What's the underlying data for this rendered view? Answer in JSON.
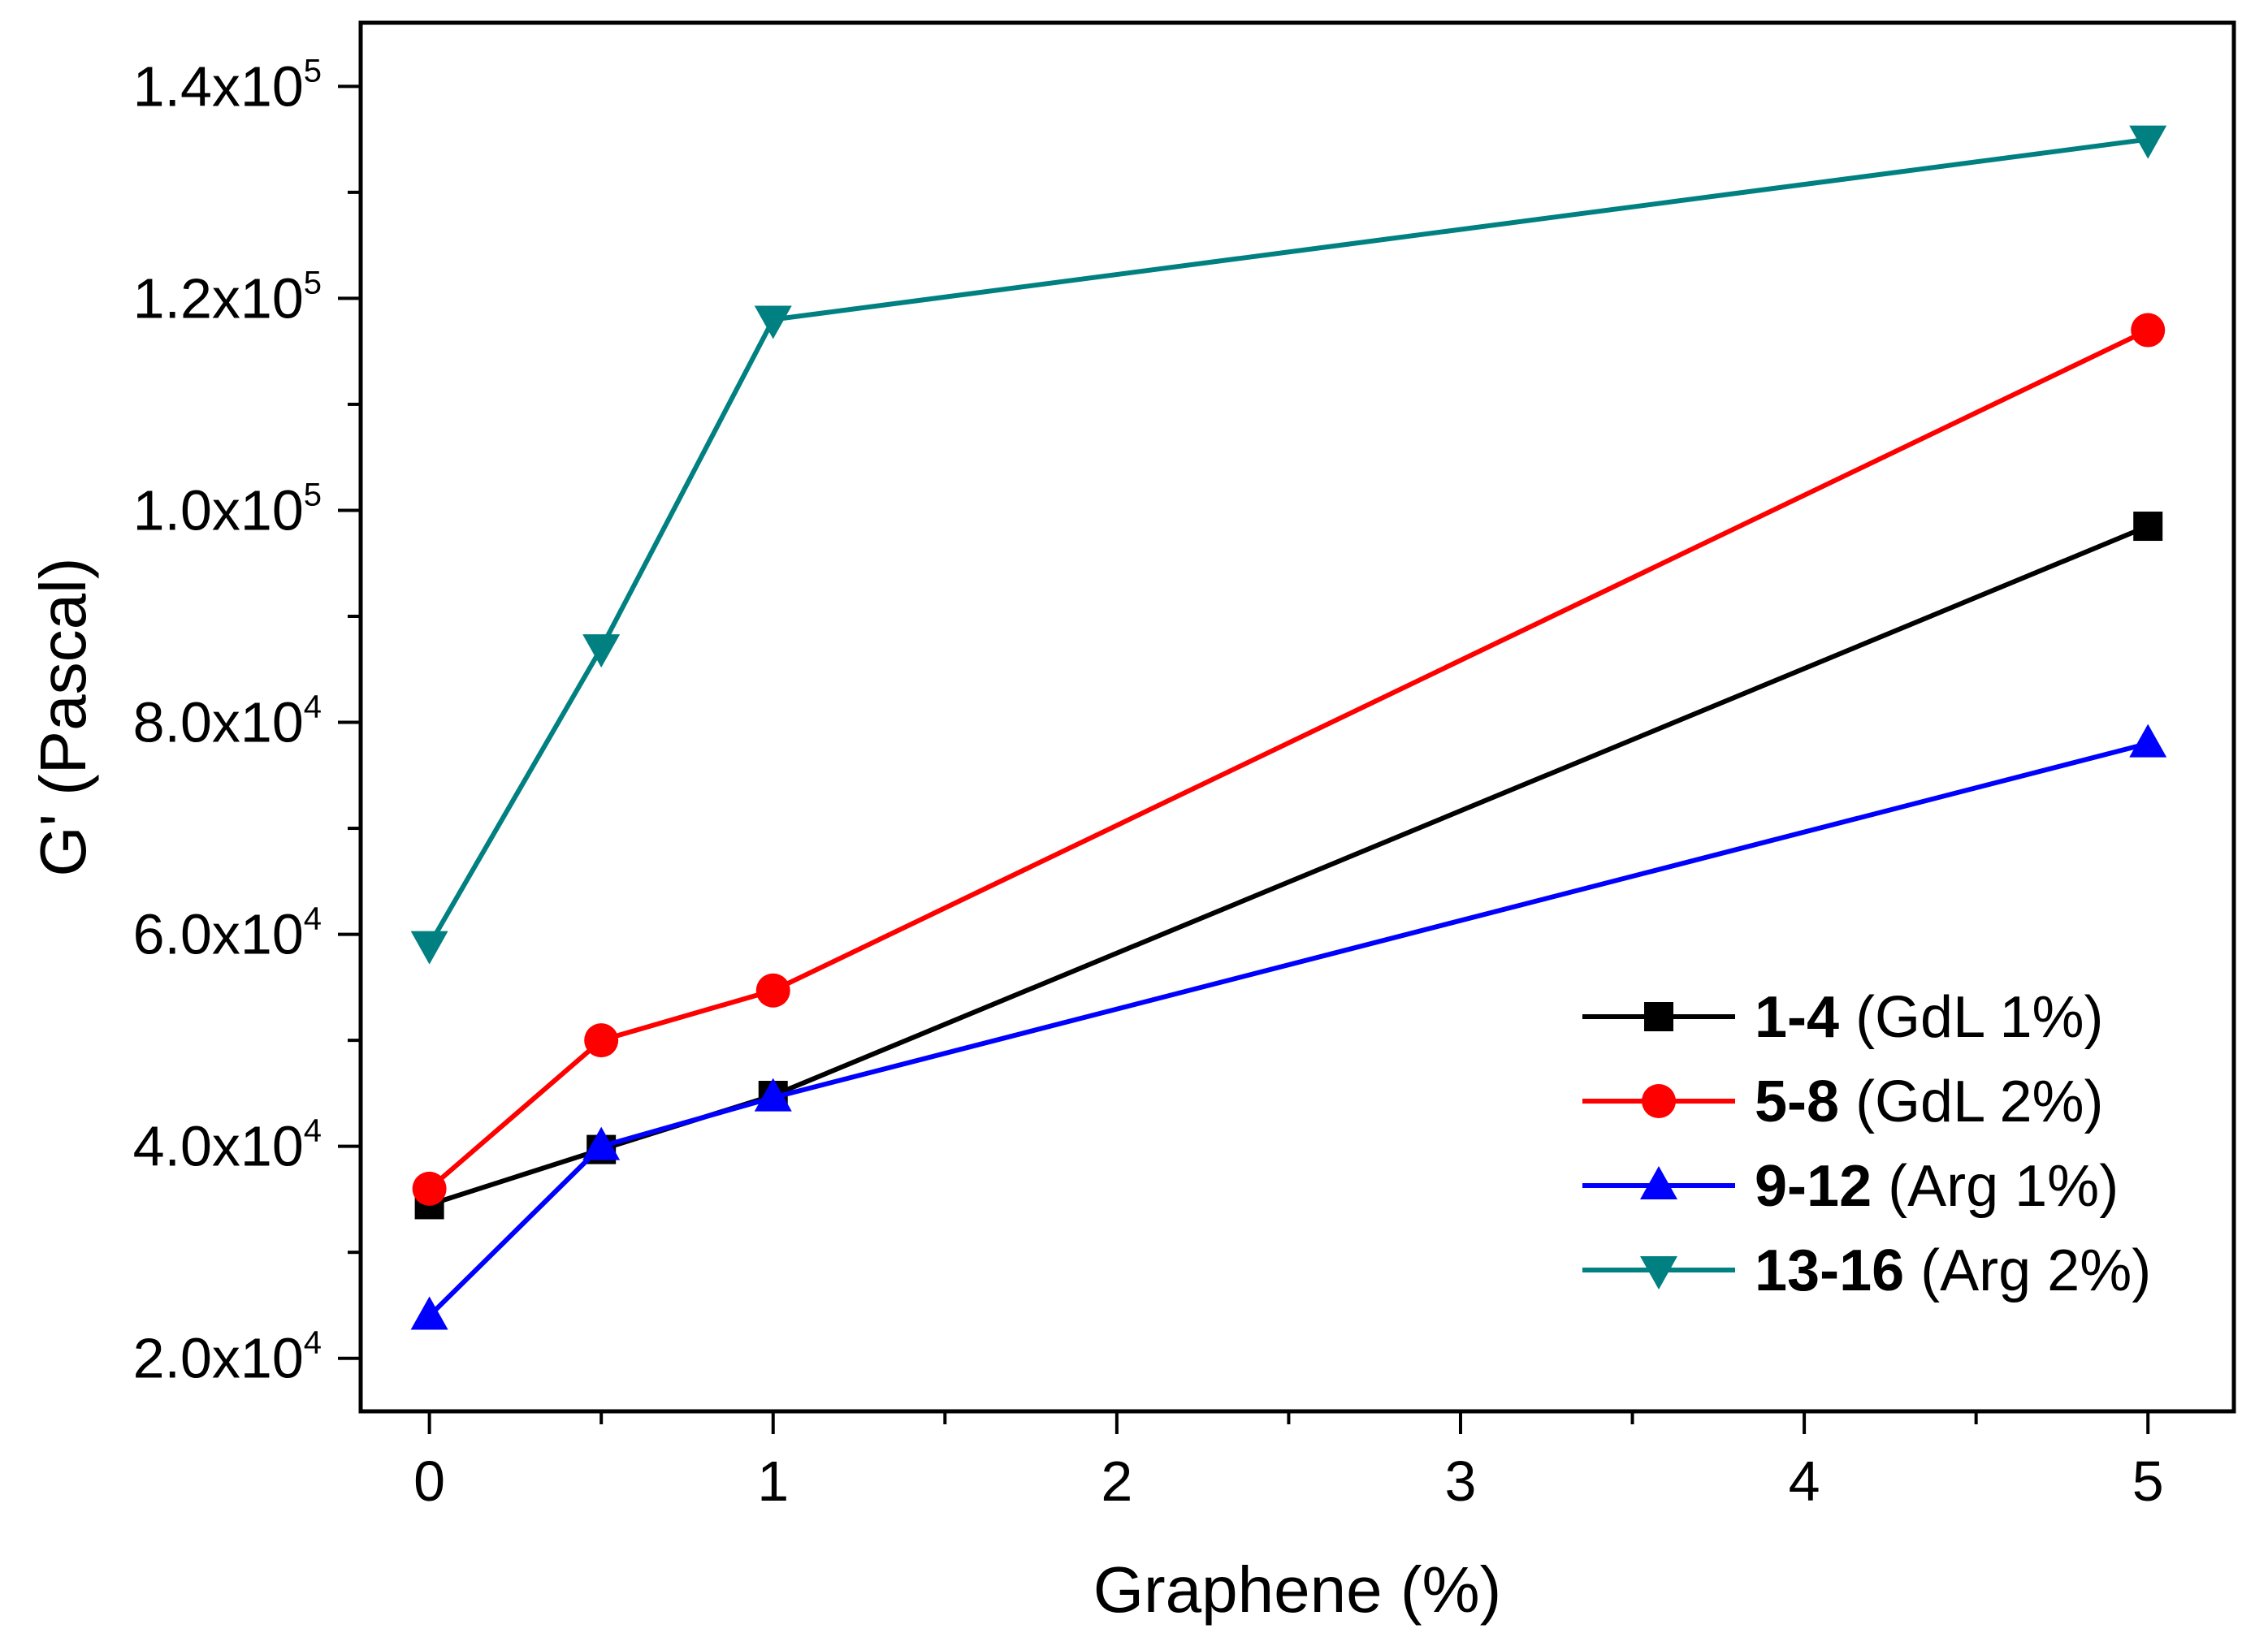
{
  "chart_data": {
    "type": "line",
    "title": "",
    "xlabel": "Graphene (%)",
    "ylabel": "G' (Pascal)",
    "xlim": [
      -0.2,
      5.25
    ],
    "ylim": [
      15000,
      146000
    ],
    "x_ticks": [
      0,
      1,
      2,
      3,
      4,
      5
    ],
    "x_tick_labels": [
      "0",
      "1",
      "2",
      "3",
      "4",
      "5"
    ],
    "x_minor_ticks": [
      0.5,
      1.5,
      2.5,
      3.5,
      4.5
    ],
    "y_ticks": [
      20000,
      40000,
      60000,
      80000,
      100000,
      120000,
      140000
    ],
    "y_tick_labels": [
      {
        "base": "2.0x10",
        "exp": "4"
      },
      {
        "base": "4.0x10",
        "exp": "4"
      },
      {
        "base": "6.0x10",
        "exp": "4"
      },
      {
        "base": "8.0x10",
        "exp": "4"
      },
      {
        "base": "1.0x10",
        "exp": "5"
      },
      {
        "base": "1.2x10",
        "exp": "5"
      },
      {
        "base": "1.4x10",
        "exp": "5"
      }
    ],
    "y_minor_ticks": [
      30000,
      50000,
      70000,
      90000,
      110000,
      130000
    ],
    "grid": false,
    "legend_position": "bottom-right",
    "series": [
      {
        "name": "1-4",
        "bold": "1-4",
        "suffix": "(GdL 1%)",
        "color": "#000000",
        "marker": "square",
        "x": [
          0,
          0.5,
          1,
          5
        ],
        "y": [
          34500,
          39700,
          44800,
          98500
        ]
      },
      {
        "name": "5-8",
        "bold": "5-8",
        "suffix": "(GdL 2%)",
        "color": "#ff0000",
        "marker": "circle",
        "x": [
          0,
          0.5,
          1,
          5
        ],
        "y": [
          36000,
          50000,
          54700,
          117000
        ]
      },
      {
        "name": "9-12",
        "bold": "9-12",
        "suffix": "(Arg 1%)",
        "color": "#0000ff",
        "marker": "triangle-up",
        "x": [
          0,
          0.5,
          1,
          5
        ],
        "y": [
          24000,
          40000,
          44600,
          78000
        ]
      },
      {
        "name": "13-16",
        "bold": "13-16",
        "suffix": "(Arg 2%)",
        "color": "#008080",
        "marker": "triangle-down",
        "x": [
          0,
          0.5,
          1,
          5
        ],
        "y": [
          59000,
          87000,
          118000,
          135000
        ]
      }
    ]
  }
}
